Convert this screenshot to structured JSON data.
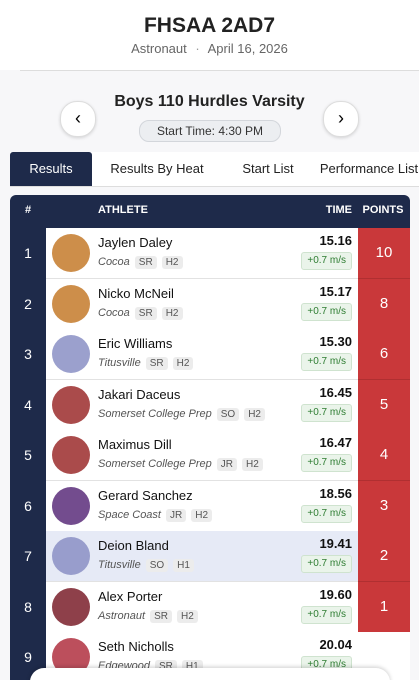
{
  "header": {
    "title": "FHSAA 2AD7",
    "venue": "Astronaut",
    "separator": "·",
    "date": "April 16, 2026"
  },
  "event": {
    "name": "Boys 110 Hurdles Varsity",
    "start_time": "Start Time: 4:30 PM"
  },
  "tabs": [
    "Results",
    "Results By Heat",
    "Start List",
    "Performance List"
  ],
  "table": {
    "columns": [
      "#",
      "ATHLETE",
      "TIME",
      "POINTS"
    ],
    "rows": [
      {
        "place": "1",
        "name": "Jaylen Daley",
        "team": "Cocoa",
        "grade": "SR",
        "heat": "H2",
        "time": "15.16",
        "wind": "+0.7 m/s",
        "points": "10"
      },
      {
        "place": "2",
        "name": "Nicko McNeil",
        "team": "Cocoa",
        "grade": "SR",
        "heat": "H2",
        "time": "15.17",
        "wind": "+0.7 m/s",
        "points": "8"
      },
      {
        "place": "3",
        "name": "Eric Williams",
        "team": "Titusville",
        "grade": "SR",
        "heat": "H2",
        "time": "15.30",
        "wind": "+0.7 m/s",
        "points": "6"
      },
      {
        "place": "4",
        "name": "Jakari Daceus",
        "team": "Somerset College Prep",
        "grade": "SO",
        "heat": "H2",
        "time": "16.45",
        "wind": "+0.7 m/s",
        "points": "5"
      },
      {
        "place": "5",
        "name": "Maximus Dill",
        "team": "Somerset College Prep",
        "grade": "JR",
        "heat": "H2",
        "time": "16.47",
        "wind": "+0.7 m/s",
        "points": "4"
      },
      {
        "place": "6",
        "name": "Gerard Sanchez",
        "team": "Space Coast",
        "grade": "JR",
        "heat": "H2",
        "time": "18.56",
        "wind": "+0.7 m/s",
        "points": "3"
      },
      {
        "place": "7",
        "name": "Deion Bland",
        "team": "Titusville",
        "grade": "SO",
        "heat": "H1",
        "time": "19.41",
        "wind": "+0.7 m/s",
        "points": "2"
      },
      {
        "place": "8",
        "name": "Alex Porter",
        "team": "Astronaut",
        "grade": "SR",
        "heat": "H2",
        "time": "19.60",
        "wind": "+0.7 m/s",
        "points": "1"
      },
      {
        "place": "9",
        "name": "Seth Nicholls",
        "team": "Edgewood",
        "grade": "SR",
        "heat": "H1",
        "time": "20.04",
        "wind": "+0.7 m/s"
      }
    ]
  }
}
